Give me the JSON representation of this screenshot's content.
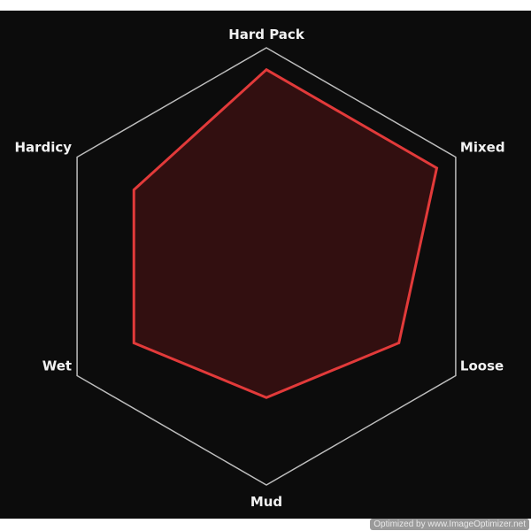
{
  "chart_data": {
    "type": "radar",
    "title": "",
    "axes": [
      "Hard Pack",
      "Mixed",
      "Loose",
      "Mud",
      "Wet",
      "Hardicy"
    ],
    "range": [
      0,
      10
    ],
    "series": [
      {
        "values": [
          9,
          9,
          7,
          6,
          7,
          7
        ]
      }
    ],
    "grid": "single outer hexagon",
    "colors": {
      "background": "#0c0c0c",
      "grid": "#bdbdbd",
      "series_stroke": "#e23a3a",
      "series_fill": "#320f10",
      "label": "#f2f2f2"
    }
  },
  "watermark": "Optimized by www.ImageOptimizer.net"
}
